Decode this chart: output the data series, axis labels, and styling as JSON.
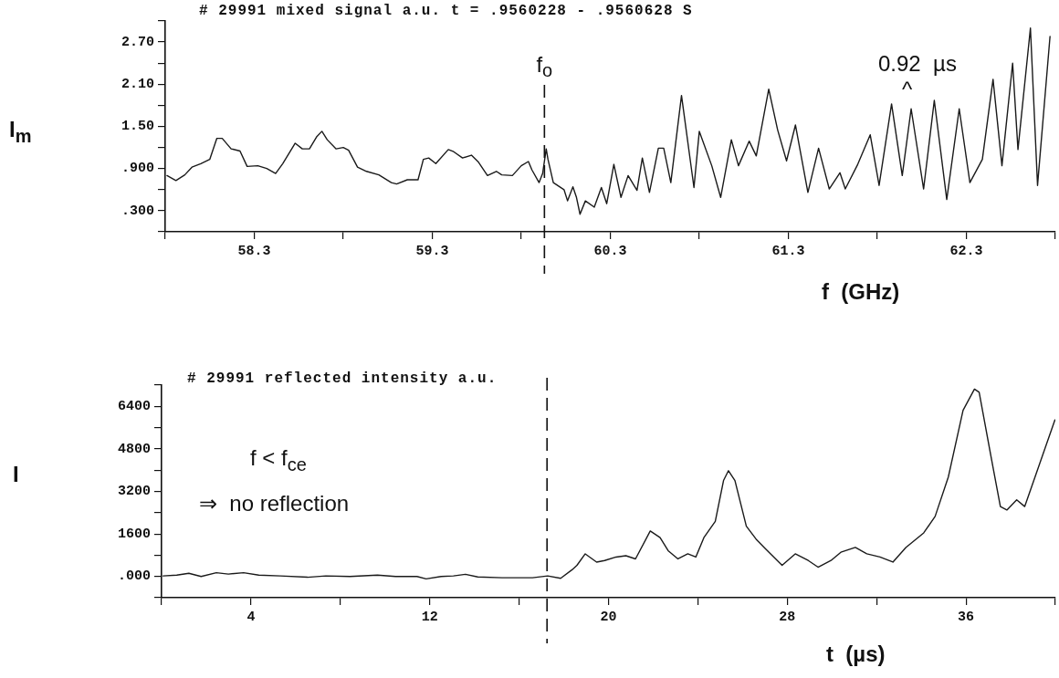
{
  "chart_data": [
    {
      "type": "line",
      "title": "# 29991 mixed signal a.u. t = .9560228 - .9560628 S",
      "xlabel": "f  (GHz)",
      "ylabel": "I$_{m}$",
      "x": [
        57.81,
        57.86,
        57.91,
        57.95,
        58.0,
        58.05,
        58.09,
        58.12,
        58.17,
        58.22,
        58.26,
        58.32,
        58.37,
        58.42,
        58.46,
        58.53,
        58.57,
        58.61,
        58.65,
        58.68,
        58.71,
        58.76,
        58.8,
        58.83,
        58.88,
        58.93,
        59.0,
        59.07,
        59.1,
        59.16,
        59.22,
        59.25,
        59.28,
        59.32,
        59.39,
        59.42,
        59.47,
        59.52,
        59.56,
        59.61,
        59.66,
        59.69,
        59.75,
        59.8,
        59.84,
        59.86,
        59.9,
        59.92,
        59.94,
        59.95,
        59.98,
        60.04,
        60.06,
        60.09,
        60.11,
        60.13,
        60.16,
        60.21,
        60.25,
        60.28,
        60.32,
        60.36,
        60.4,
        60.45,
        60.48,
        60.52,
        60.57,
        60.6,
        60.64,
        60.7,
        60.77,
        60.8,
        60.87,
        60.92,
        60.98,
        61.02,
        61.08,
        61.12,
        61.19,
        61.24,
        61.29,
        61.34,
        61.41,
        61.47,
        61.53,
        61.59,
        61.62,
        61.69,
        61.76,
        61.81,
        61.88,
        61.94,
        61.99,
        62.06,
        62.12,
        62.19,
        62.26,
        62.32,
        62.39,
        62.45,
        62.5,
        62.56,
        62.59,
        62.66,
        62.7,
        62.77
      ],
      "color": "#1a1a1a",
      "values": [
        0.8,
        0.73,
        0.81,
        0.92,
        0.97,
        1.03,
        1.33,
        1.33,
        1.18,
        1.15,
        0.93,
        0.94,
        0.9,
        0.83,
        0.97,
        1.26,
        1.18,
        1.18,
        1.35,
        1.43,
        1.31,
        1.18,
        1.2,
        1.16,
        0.92,
        0.86,
        0.81,
        0.7,
        0.68,
        0.74,
        0.74,
        1.03,
        1.05,
        0.97,
        1.17,
        1.14,
        1.05,
        1.09,
        0.99,
        0.8,
        0.86,
        0.81,
        0.8,
        0.94,
        1.0,
        0.88,
        0.7,
        0.83,
        1.18,
        1.03,
        0.7,
        0.6,
        0.44,
        0.64,
        0.49,
        0.25,
        0.44,
        0.35,
        0.63,
        0.4,
        0.96,
        0.49,
        0.8,
        0.59,
        1.05,
        0.56,
        1.19,
        1.19,
        0.7,
        1.94,
        0.63,
        1.43,
        0.94,
        0.49,
        1.31,
        0.94,
        1.29,
        1.08,
        2.03,
        1.45,
        1.01,
        1.52,
        0.56,
        1.19,
        0.61,
        0.84,
        0.61,
        0.96,
        1.38,
        0.66,
        1.82,
        0.8,
        1.75,
        0.61,
        1.87,
        0.46,
        1.75,
        0.7,
        1.03,
        2.17,
        0.94,
        2.4,
        1.17,
        2.9,
        0.66,
        2.78
      ],
      "xlim": [
        57.8,
        62.8
      ],
      "xticks": [
        {
          "value": 57.8,
          "label": null
        },
        58.3,
        {
          "value": 58.8,
          "label": null
        },
        59.3,
        {
          "value": 59.8,
          "label": null
        },
        60.3,
        {
          "value": 60.8,
          "label": null
        },
        61.3,
        {
          "value": 61.8,
          "label": null
        },
        62.3,
        {
          "value": 62.8,
          "label": null
        }
      ],
      "ylim": [
        0,
        3.0
      ],
      "yticks": [
        {
          "value": 0,
          "label": null
        },
        {
          "value": 0.3,
          "label": ".300"
        },
        {
          "value": 0.6,
          "label": null
        },
        {
          "value": 0.9,
          "label": ".900"
        },
        {
          "value": 1.2,
          "label": null
        },
        {
          "value": 1.5,
          "label": "1.50"
        },
        {
          "value": 1.8,
          "label": null
        },
        {
          "value": 2.1,
          "label": "2.10"
        },
        {
          "value": 2.4,
          "label": null
        },
        {
          "value": 2.7,
          "label": "2.70"
        },
        {
          "value": 3.0,
          "label": null
        }
      ],
      "ref_lines": [
        {
          "axis": "x",
          "value": 59.93,
          "label": "f$_{o}$",
          "line_style": "dashed"
        }
      ],
      "annotations": [
        "0.92  µs",
        "^"
      ]
    },
    {
      "type": "line",
      "title": "# 29991 reflected intensity a.u.",
      "xlabel": "t  (µs)",
      "ylabel": "I",
      "x": [
        0.07,
        0.68,
        1.22,
        1.77,
        2.45,
        2.99,
        3.67,
        4.35,
        5.31,
        6.53,
        7.35,
        8.43,
        9.66,
        10.47,
        11.43,
        11.84,
        12.51,
        13.06,
        13.6,
        14.15,
        15.24,
        16.6,
        17.28,
        17.86,
        18.37,
        18.59,
        18.96,
        19.47,
        19.83,
        20.34,
        20.78,
        21.21,
        21.87,
        22.31,
        22.67,
        23.11,
        23.55,
        23.91,
        24.27,
        24.78,
        25.15,
        25.37,
        25.66,
        26.17,
        26.61,
        27.04,
        27.77,
        28.36,
        28.94,
        29.38,
        29.96,
        30.4,
        31.05,
        31.56,
        32.15,
        32.73,
        33.31,
        34.11,
        34.62,
        35.21,
        35.87,
        36.38,
        36.59,
        37.1,
        37.54,
        37.83,
        38.27,
        38.63,
        39.14,
        39.98
      ],
      "color": "#1a1a1a",
      "values": [
        20,
        50,
        120,
        0,
        140,
        90,
        140,
        50,
        20,
        -30,
        20,
        0,
        50,
        0,
        0,
        -90,
        0,
        20,
        80,
        -20,
        -50,
        -50,
        20,
        -70,
        250,
        420,
        850,
        540,
        600,
        730,
        780,
        660,
        1710,
        1460,
        970,
        660,
        850,
        730,
        1460,
        2070,
        3610,
        3980,
        3610,
        1890,
        1400,
        1030,
        420,
        850,
        600,
        350,
        600,
        910,
        1090,
        850,
        730,
        540,
        1090,
        1640,
        2260,
        3740,
        6250,
        7050,
        6930,
        4600,
        2630,
        2500,
        2880,
        2630,
        3860,
        5890
      ],
      "xlim": [
        0,
        40
      ],
      "xticks": [
        {
          "value": 0,
          "label": null
        },
        4,
        {
          "value": 8,
          "label": null
        },
        12,
        {
          "value": 16,
          "label": null
        },
        20,
        {
          "value": 24,
          "label": null
        },
        28,
        {
          "value": 32,
          "label": null
        },
        36,
        {
          "value": 40,
          "label": null
        }
      ],
      "ylim": [
        -800,
        7200
      ],
      "yticks": [
        {
          "value": -800,
          "label": null
        },
        {
          "value": 0,
          "label": ".000"
        },
        {
          "value": 800,
          "label": null
        },
        1600,
        {
          "value": 2400,
          "label": null
        },
        3200,
        {
          "value": 4000,
          "label": null
        },
        4800,
        {
          "value": 5600,
          "label": null
        },
        6400,
        {
          "value": 7200,
          "label": null
        }
      ],
      "ref_lines": [
        {
          "axis": "x",
          "value": 17.25,
          "line_style": "dashed"
        }
      ],
      "annotations": [
        "f < f$_{ce}$",
        "⇒  no reflection"
      ]
    }
  ]
}
